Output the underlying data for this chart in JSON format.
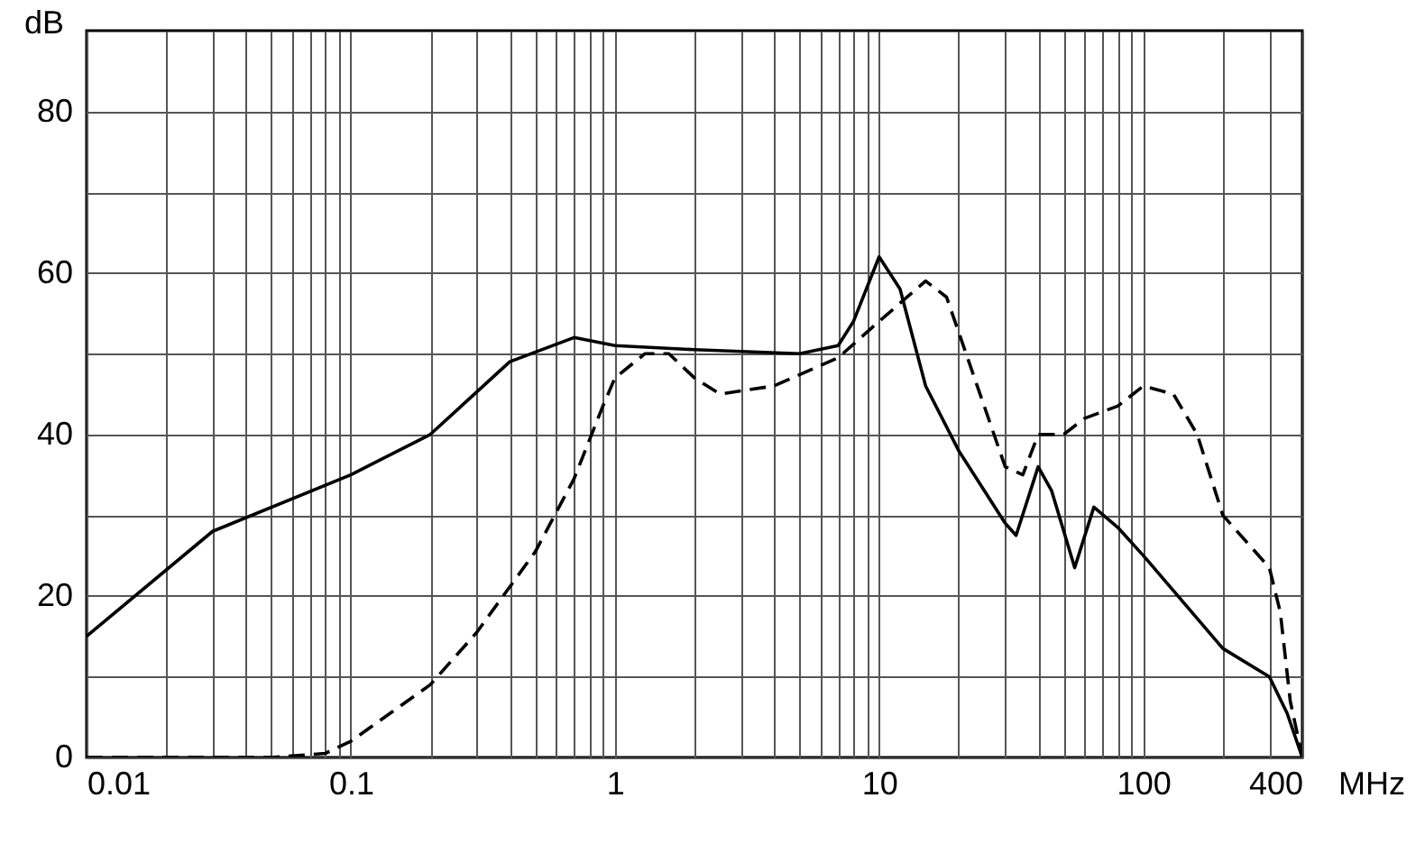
{
  "chart_data": {
    "type": "line",
    "xlabel": "MHz",
    "ylabel": "dB",
    "log": "x",
    "grid": true,
    "marker": "none",
    "xlim": [
      0.01,
      400
    ],
    "ylim": [
      0,
      90
    ],
    "xticks": [
      0.01,
      {
        "value": 0.02,
        "label": null
      },
      {
        "value": 0.03,
        "label": null
      },
      {
        "value": 0.04,
        "label": null
      },
      {
        "value": 0.05,
        "label": null
      },
      {
        "value": 0.06,
        "label": null
      },
      {
        "value": 0.07,
        "label": null
      },
      {
        "value": 0.08,
        "label": null
      },
      {
        "value": 0.09,
        "label": null
      },
      0.1,
      {
        "value": 0.2,
        "label": null
      },
      {
        "value": 0.3,
        "label": null
      },
      {
        "value": 0.4,
        "label": null
      },
      {
        "value": 0.5,
        "label": null
      },
      {
        "value": 0.6,
        "label": null
      },
      {
        "value": 0.7,
        "label": null
      },
      {
        "value": 0.8,
        "label": null
      },
      {
        "value": 0.9,
        "label": null
      },
      1,
      {
        "value": 2,
        "label": null
      },
      {
        "value": 3,
        "label": null
      },
      {
        "value": 4,
        "label": null
      },
      {
        "value": 5,
        "label": null
      },
      {
        "value": 6,
        "label": null
      },
      {
        "value": 7,
        "label": null
      },
      {
        "value": 8,
        "label": null
      },
      {
        "value": 9,
        "label": null
      },
      10,
      {
        "value": 20,
        "label": null
      },
      {
        "value": 30,
        "label": null
      },
      {
        "value": 40,
        "label": null
      },
      {
        "value": 50,
        "label": null
      },
      {
        "value": 60,
        "label": null
      },
      {
        "value": 70,
        "label": null
      },
      {
        "value": 80,
        "label": null
      },
      {
        "value": 90,
        "label": null
      },
      100,
      {
        "value": 200,
        "label": null
      },
      {
        "value": 300,
        "label": null
      },
      400
    ],
    "yticks": [
      0,
      {
        "value": 10,
        "label": null
      },
      20,
      {
        "value": 30,
        "label": null
      },
      40,
      {
        "value": 50,
        "label": null
      },
      60,
      {
        "value": 70,
        "label": null
      },
      80
    ],
    "series": [
      {
        "color": "#000000",
        "line_style": "solid",
        "x": [
          0.01,
          0.03,
          0.1,
          0.2,
          0.4,
          0.7,
          1,
          2,
          5,
          7,
          8,
          10,
          12,
          15,
          20,
          30,
          33,
          40,
          45,
          55,
          65,
          80,
          100,
          200,
          300,
          350,
          400
        ],
        "values": [
          15,
          28,
          35,
          40,
          49,
          52,
          51,
          50.5,
          50,
          51,
          54,
          62,
          58,
          46,
          38,
          29,
          27.5,
          36,
          33,
          23.5,
          31,
          28.5,
          25,
          13.5,
          10,
          5.5,
          0
        ]
      },
      {
        "color": "#000000",
        "line_style": "dashed",
        "x": [
          0.01,
          0.05,
          0.08,
          0.1,
          0.2,
          0.3,
          0.5,
          0.7,
          0.9,
          1,
          1.3,
          1.6,
          2,
          2.5,
          4,
          7,
          10,
          15,
          18,
          25,
          30,
          35,
          40,
          50,
          60,
          80,
          100,
          130,
          160,
          200,
          300,
          330,
          360,
          400
        ],
        "values": [
          0,
          0,
          0.5,
          2,
          9,
          15.5,
          25.5,
          34.5,
          43.5,
          47,
          50,
          50,
          47,
          45,
          46,
          49.5,
          54,
          59,
          57,
          43.5,
          36,
          35,
          40,
          40,
          42,
          43.5,
          46,
          45,
          40,
          30,
          23.5,
          18,
          7,
          0
        ]
      }
    ]
  }
}
